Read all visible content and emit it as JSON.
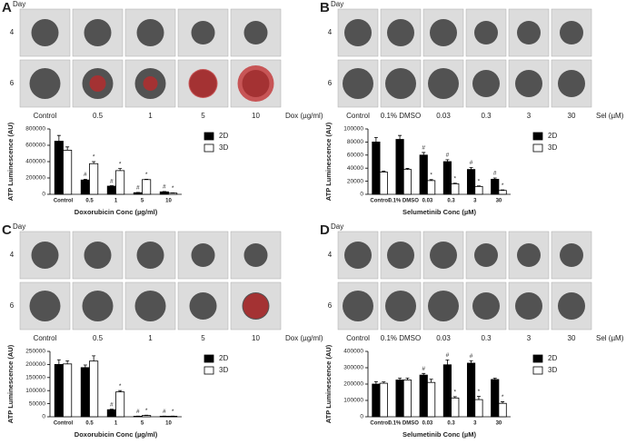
{
  "panels": [
    {
      "letter": "A",
      "day_label": "Day",
      "days": [
        "4",
        "6"
      ],
      "conditions": [
        "Control",
        "0.5",
        "1",
        "5",
        "10"
      ],
      "unit": "Dox (µg/ml)"
    },
    {
      "letter": "B",
      "day_label": "Day",
      "days": [
        "4",
        "6"
      ],
      "conditions": [
        "Control",
        "0.1% DMSO",
        "0.03",
        "0.3",
        "3",
        "30"
      ],
      "unit": "Sel (µM)"
    },
    {
      "letter": "C",
      "day_label": "Day",
      "days": [
        "4",
        "6"
      ],
      "conditions": [
        "Control",
        "0.5",
        "1",
        "5",
        "10"
      ],
      "unit": "Dox (µg/ml)"
    },
    {
      "letter": "D",
      "day_label": "Day",
      "days": [
        "4",
        "6"
      ],
      "conditions": [
        "Control",
        "0.1% DMSO",
        "0.03",
        "0.3",
        "3",
        "30"
      ],
      "unit": "Sel (µM)"
    }
  ],
  "chart_data": [
    {
      "type": "bar",
      "xlabel": "Doxorubicin Conc (µg/ml)",
      "ylabel": "ATP Luminescence (AU)",
      "categories": [
        "Control",
        "0.5",
        "1",
        "5",
        "10"
      ],
      "ylim": [
        0,
        800000
      ],
      "yticks": [
        0,
        200000,
        400000,
        600000,
        800000
      ],
      "series": [
        {
          "name": "2D",
          "color": "#000000",
          "values": [
            650000,
            175000,
            100000,
            20000,
            30000
          ],
          "errors": [
            70000,
            10000,
            5000,
            3000,
            5000
          ],
          "annotations": [
            null,
            "#",
            "#",
            "#",
            "#"
          ]
        },
        {
          "name": "3D",
          "color": "#ffffff",
          "values": [
            540000,
            375000,
            290000,
            180000,
            15000
          ],
          "errors": [
            40000,
            25000,
            25000,
            5000,
            3000
          ],
          "annotations": [
            null,
            "*",
            "*",
            "*",
            "*"
          ]
        }
      ]
    },
    {
      "type": "bar",
      "xlabel": "Selumetinib Conc (µM)",
      "ylabel": "ATP Luminescence (AU)",
      "categories": [
        "Control",
        "0.1% DMSO",
        "0.03",
        "0.3",
        "3",
        "30"
      ],
      "ylim": [
        0,
        100000
      ],
      "yticks": [
        0,
        20000,
        40000,
        60000,
        80000,
        100000
      ],
      "series": [
        {
          "name": "2D",
          "color": "#000000",
          "values": [
            80000,
            84000,
            60000,
            50000,
            38000,
            23000
          ],
          "errors": [
            7000,
            6000,
            4000,
            3000,
            3000,
            2000
          ],
          "annotations": [
            null,
            null,
            "#",
            "#",
            "#",
            "#"
          ]
        },
        {
          "name": "3D",
          "color": "#ffffff",
          "values": [
            34000,
            38000,
            21000,
            16000,
            12000,
            6000
          ],
          "errors": [
            1500,
            1500,
            1500,
            1000,
            800,
            800
          ],
          "annotations": [
            null,
            null,
            "*",
            "*",
            "*",
            "*"
          ]
        }
      ]
    },
    {
      "type": "bar",
      "xlabel": "Doxorubicin Conc (µg/ml)",
      "ylabel": "ATP Luminescence (AU)",
      "categories": [
        "Control",
        "0.5",
        "1",
        "5",
        "10"
      ],
      "ylim": [
        0,
        250000
      ],
      "yticks": [
        0,
        50000,
        100000,
        150000,
        200000,
        250000
      ],
      "series": [
        {
          "name": "2D",
          "color": "#000000",
          "values": [
            200000,
            188000,
            27000,
            2000,
            2000
          ],
          "errors": [
            18000,
            10000,
            2000,
            500,
            500
          ],
          "annotations": [
            null,
            null,
            "#",
            "#",
            "#"
          ]
        },
        {
          "name": "3D",
          "color": "#ffffff",
          "values": [
            202000,
            213000,
            95000,
            5000,
            2000
          ],
          "errors": [
            12000,
            20000,
            5000,
            1000,
            500
          ],
          "annotations": [
            null,
            null,
            "*",
            "*",
            "*"
          ]
        }
      ]
    },
    {
      "type": "bar",
      "xlabel": "Selumetinib Conc (µM)",
      "ylabel": "ATP Luminescence (AU)",
      "categories": [
        "Control",
        "0.1% DMSO",
        "0.03",
        "0.3",
        "3",
        "30"
      ],
      "ylim": [
        0,
        400000
      ],
      "yticks": [
        0,
        100000,
        200000,
        300000,
        400000
      ],
      "series": [
        {
          "name": "2D",
          "color": "#000000",
          "values": [
            200000,
            225000,
            255000,
            318000,
            328000,
            228000
          ],
          "errors": [
            15000,
            12000,
            10000,
            30000,
            15000,
            8000
          ],
          "annotations": [
            null,
            null,
            "#",
            "#",
            "#",
            null
          ]
        },
        {
          "name": "3D",
          "color": "#ffffff",
          "values": [
            205000,
            225000,
            210000,
            115000,
            105000,
            82000
          ],
          "errors": [
            8000,
            12000,
            20000,
            8000,
            20000,
            10000
          ],
          "annotations": [
            null,
            null,
            null,
            "*",
            "*",
            "*"
          ]
        }
      ]
    }
  ]
}
